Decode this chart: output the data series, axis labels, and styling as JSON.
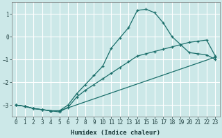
{
  "xlabel": "Humidex (Indice chaleur)",
  "bg_color": "#cce8e8",
  "grid_color": "#ffffff",
  "line_color": "#1a6e6a",
  "xlim": [
    -0.5,
    23.5
  ],
  "ylim": [
    -3.5,
    1.5
  ],
  "xticks": [
    0,
    1,
    2,
    3,
    4,
    5,
    6,
    7,
    8,
    9,
    10,
    11,
    12,
    13,
    14,
    15,
    16,
    17,
    18,
    19,
    20,
    21,
    22,
    23
  ],
  "yticks": [
    -3,
    -2,
    -1,
    0,
    1
  ],
  "line1_x": [
    0,
    1,
    2,
    3,
    4,
    5,
    6,
    7,
    8,
    9,
    10,
    11,
    12,
    13,
    14,
    15,
    16,
    17,
    18,
    19,
    20,
    21,
    22,
    23
  ],
  "line1_y": [
    -3.0,
    -3.05,
    -3.15,
    -3.2,
    -3.25,
    -3.25,
    -3.0,
    -2.5,
    -2.1,
    -1.7,
    -1.3,
    -0.5,
    -0.05,
    0.4,
    1.15,
    1.2,
    1.05,
    0.6,
    0.0,
    -0.35,
    -0.7,
    -0.75,
    -0.8,
    -1.0
  ],
  "line2_x": [
    0,
    1,
    2,
    3,
    4,
    5,
    23
  ],
  "line2_y": [
    -3.0,
    -3.05,
    -3.15,
    -3.2,
    -3.25,
    -3.25,
    -0.9
  ],
  "line3_x": [
    0,
    1,
    2,
    3,
    4,
    5,
    6,
    7,
    8,
    9,
    10,
    11,
    12,
    13,
    14,
    15,
    16,
    17,
    18,
    19,
    20,
    21,
    22,
    23
  ],
  "line3_y": [
    -3.0,
    -3.05,
    -3.15,
    -3.2,
    -3.25,
    -3.3,
    -3.1,
    -2.65,
    -2.35,
    -2.1,
    -1.85,
    -1.6,
    -1.35,
    -1.1,
    -0.85,
    -0.75,
    -0.65,
    -0.55,
    -0.45,
    -0.35,
    -0.25,
    -0.2,
    -0.15,
    -0.85
  ]
}
